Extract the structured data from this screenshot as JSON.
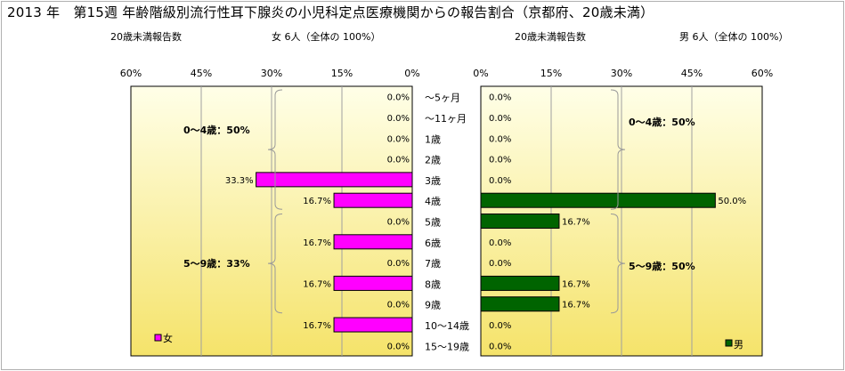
{
  "title": "2013 年　第15週 年齢階級別流行性耳下腺炎の小児科定点医療機関からの報告割合（京都府、20歳未満）",
  "left_header": {
    "label": "20歳未満報告数",
    "count": "女 6人（全体の 100%）"
  },
  "right_header": {
    "label": "20歳未満報告数",
    "count": "男 6人（全体の 100%）"
  },
  "colors": {
    "female": "#ff00ff",
    "male": "#006400",
    "bg_light": "#ffffe8",
    "bg_dark": "#f5e36a"
  },
  "chart_data": [
    {
      "type": "bar",
      "orientation": "horizontal-mirrored",
      "series": [
        {
          "name": "女",
          "values": [
            0.0,
            0.0,
            0.0,
            0.0,
            33.3,
            16.7,
            0.0,
            16.7,
            0.0,
            16.7,
            0.0,
            16.7,
            0.0
          ]
        }
      ],
      "categories": [
        "～5ヶ月",
        "～11ヶ月",
        "1歳",
        "2歳",
        "3歳",
        "4歳",
        "5歳",
        "6歳",
        "7歳",
        "8歳",
        "9歳",
        "10～14歳",
        "15～19歳"
      ],
      "data_labels": [
        "0.0%",
        "0.0%",
        "0.0%",
        "0.0%",
        "33.3%",
        "16.7%",
        "0.0%",
        "16.7%",
        "0.0%",
        "16.7%",
        "0.0%",
        "16.7%",
        "0.0%"
      ],
      "xlim": [
        0,
        60
      ],
      "xticks": [
        "60%",
        "45%",
        "30%",
        "15%",
        "0%"
      ],
      "group_labels": [
        "0～4歳：50%",
        "5～9歳：33%"
      ],
      "legend": "女"
    },
    {
      "type": "bar",
      "orientation": "horizontal",
      "series": [
        {
          "name": "男",
          "values": [
            0.0,
            0.0,
            0.0,
            0.0,
            0.0,
            50.0,
            16.7,
            0.0,
            0.0,
            16.7,
            16.7,
            0.0,
            0.0
          ]
        }
      ],
      "categories": [
        "～5ヶ月",
        "～11ヶ月",
        "1歳",
        "2歳",
        "3歳",
        "4歳",
        "5歳",
        "6歳",
        "7歳",
        "8歳",
        "9歳",
        "10～14歳",
        "15～19歳"
      ],
      "data_labels": [
        "0.0%",
        "0.0%",
        "0.0%",
        "0.0%",
        "0.0%",
        "50.0%",
        "16.7%",
        "0.0%",
        "0.0%",
        "16.7%",
        "16.7%",
        "0.0%",
        "0.0%"
      ],
      "xlim": [
        0,
        60
      ],
      "xticks": [
        "0%",
        "15%",
        "30%",
        "45%",
        "60%"
      ],
      "group_labels": [
        "0～4歳：50%",
        "5～9歳：50%"
      ],
      "legend": "男"
    }
  ]
}
